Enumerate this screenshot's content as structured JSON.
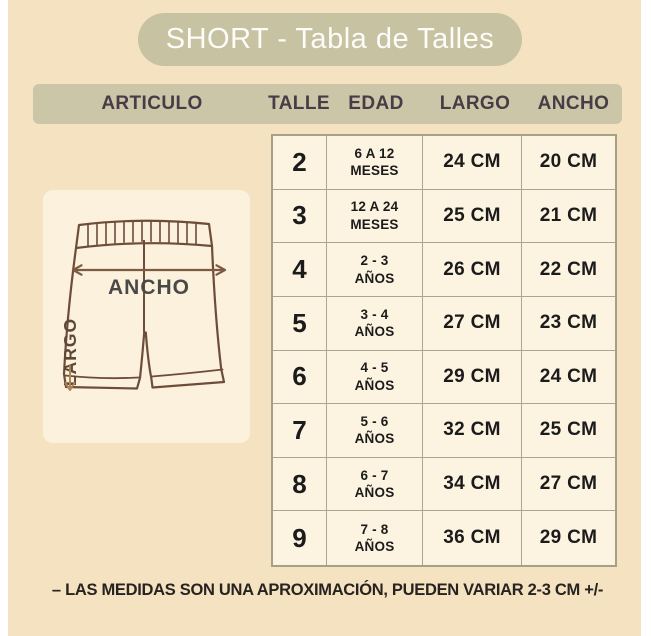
{
  "title_banner": {
    "text": "SHORT - Tabla de Talles",
    "bg": "#c7c2a2",
    "text_color": "#fcfcf8"
  },
  "table_header": {
    "bg": "#cbc6a8",
    "text_color": "#4a3b46",
    "columns": [
      "ARTICULO",
      "TALLE",
      "EDAD",
      "LARGO",
      "ANCHO"
    ]
  },
  "illustration": {
    "labels": {
      "width": "ANCHO",
      "length": "LARGO"
    },
    "panel_bg": "#fbf1dc",
    "outline_color": "#6d4c39",
    "arrow_color": "#b08455"
  },
  "size_table": {
    "rows": [
      {
        "talle": "2",
        "edad_line1": "6 A 12",
        "edad_line2": "MESES",
        "largo": "24 CM",
        "ancho": "20 CM"
      },
      {
        "talle": "3",
        "edad_line1": "12 A 24",
        "edad_line2": "MESES",
        "largo": "25 CM",
        "ancho": "21 CM"
      },
      {
        "talle": "4",
        "edad_line1": "2 - 3",
        "edad_line2": "AÑOS",
        "largo": "26 CM",
        "ancho": "22 CM"
      },
      {
        "talle": "5",
        "edad_line1": "3 - 4",
        "edad_line2": "AÑOS",
        "largo": "27 CM",
        "ancho": "23 CM"
      },
      {
        "talle": "6",
        "edad_line1": "4 - 5",
        "edad_line2": "AÑOS",
        "largo": "29 CM",
        "ancho": "24 CM"
      },
      {
        "talle": "7",
        "edad_line1": "5 - 6",
        "edad_line2": "AÑOS",
        "largo": "32 CM",
        "ancho": "25 CM"
      },
      {
        "talle": "8",
        "edad_line1": "6 - 7",
        "edad_line2": "AÑOS",
        "largo": "34 CM",
        "ancho": "27 CM"
      },
      {
        "talle": "9",
        "edad_line1": "7 - 8",
        "edad_line2": "AÑOS",
        "largo": "36 CM",
        "ancho": "29 CM"
      }
    ]
  },
  "footer": {
    "note": "– LAS MEDIDAS SON UNA APROXIMACIÓN, PUEDEN VARIAR 2-3 CM +/-"
  },
  "chart_data": {
    "type": "table",
    "title": "SHORT - Tabla de Talles",
    "columns": [
      "TALLE",
      "EDAD",
      "LARGO",
      "ANCHO"
    ],
    "rows": [
      [
        "2",
        "6 A 12 MESES",
        "24 CM",
        "20 CM"
      ],
      [
        "3",
        "12 A 24 MESES",
        "25 CM",
        "21 CM"
      ],
      [
        "4",
        "2 - 3 AÑOS",
        "26 CM",
        "22 CM"
      ],
      [
        "5",
        "3 - 4 AÑOS",
        "27 CM",
        "23 CM"
      ],
      [
        "6",
        "4 - 5 AÑOS",
        "29 CM",
        "24 CM"
      ],
      [
        "7",
        "5 - 6 AÑOS",
        "32 CM",
        "25 CM"
      ],
      [
        "8",
        "6 - 7 AÑOS",
        "34 CM",
        "27 CM"
      ],
      [
        "9",
        "7 - 8 AÑOS",
        "36 CM",
        "29 CM"
      ]
    ],
    "note": "– LAS MEDIDAS SON UNA APROXIMACIÓN, PUEDEN VARIAR 2-3 CM +/-"
  }
}
